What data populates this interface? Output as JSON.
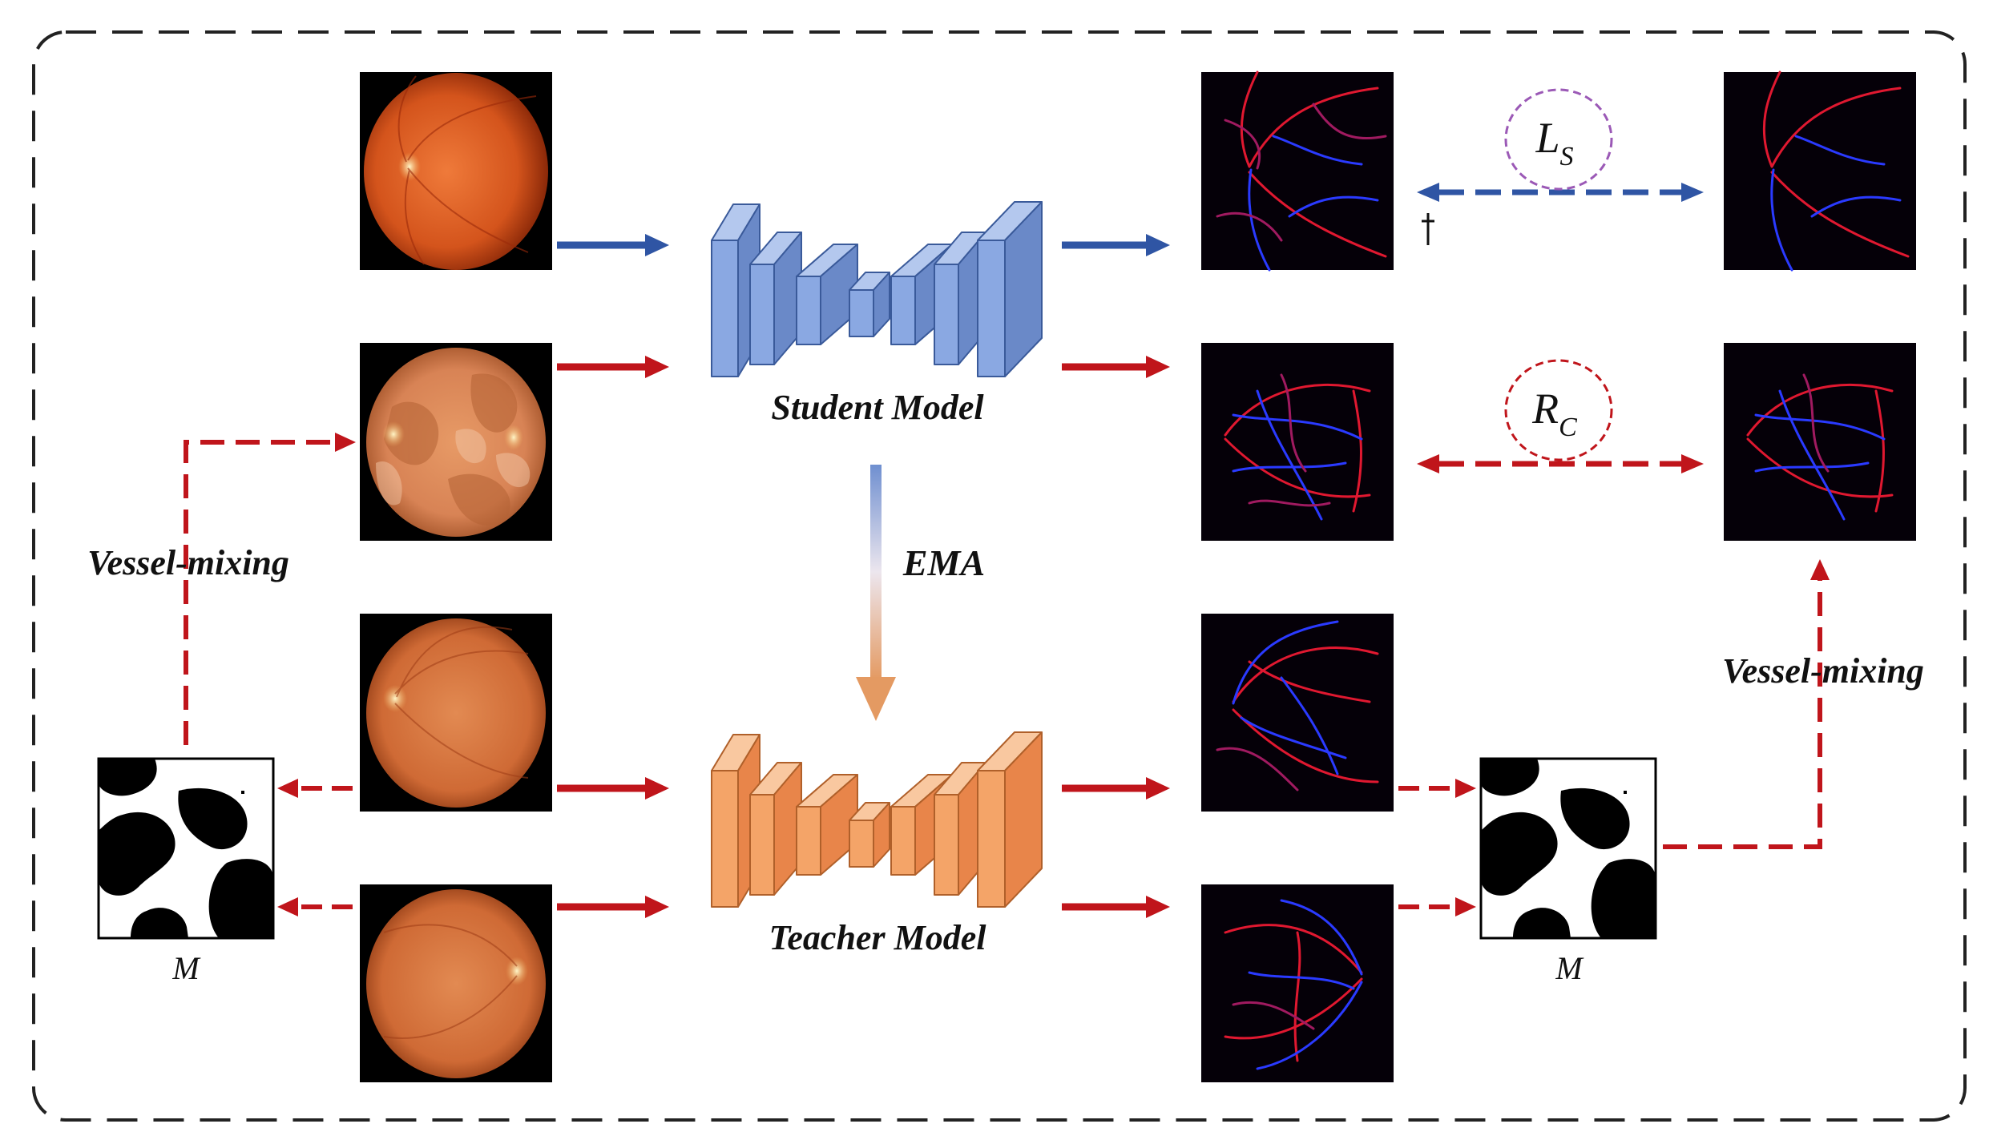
{
  "labels": {
    "student_model": "Student Model",
    "teacher_model": "Teacher Model",
    "ema": "EMA",
    "vessel_mixing_left": "Vessel-mixing",
    "vessel_mixing_right": "Vessel-mixing",
    "mask_left": "M",
    "mask_right": "M",
    "loss_ls_base": "L",
    "loss_ls_sub": "S",
    "loss_rc_base": "R",
    "loss_rc_sub": "C"
  },
  "colors": {
    "labeled_arrow": "#2f55a4",
    "unlabeled_arrow": "#c0151b",
    "student_model": "#7f9fdc",
    "teacher_model": "#ef9a5b",
    "ls_circle": "#9b59b6",
    "rc_circle": "#c0151b",
    "frame": "#222222"
  },
  "icons": {
    "fundus_images": "retina-fundus-image",
    "vessel_maps": "vessel-prediction-map",
    "masks": "binary-mix-mask"
  }
}
